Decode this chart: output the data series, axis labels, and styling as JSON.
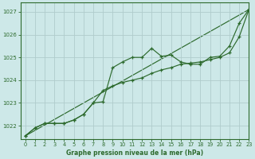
{
  "title": "Graphe pression niveau de la mer (hPa)",
  "background_color": "#cde8e8",
  "grid_color": "#b0cccc",
  "line_color": "#2d6a2d",
  "xlim": [
    -0.5,
    23
  ],
  "ylim": [
    1021.4,
    1027.4
  ],
  "yticks": [
    1022,
    1023,
    1024,
    1025,
    1026,
    1027
  ],
  "xticks": [
    0,
    1,
    2,
    3,
    4,
    5,
    6,
    7,
    8,
    9,
    10,
    11,
    12,
    13,
    14,
    15,
    16,
    17,
    18,
    19,
    20,
    21,
    22,
    23
  ],
  "series1_x": [
    0,
    1,
    2,
    3,
    4,
    5,
    6,
    7,
    8,
    9,
    10,
    11,
    12,
    13,
    14,
    15,
    16,
    17,
    18,
    19,
    20,
    21,
    22,
    23
  ],
  "series1_y": [
    1021.55,
    1021.9,
    1022.1,
    1022.1,
    1022.1,
    1022.25,
    1022.5,
    1023.0,
    1023.05,
    1024.55,
    1024.8,
    1025.0,
    1025.0,
    1025.4,
    1025.05,
    1025.1,
    1024.8,
    1024.7,
    1024.7,
    1025.0,
    1025.05,
    1025.5,
    1026.5,
    1027.1
  ],
  "series2_x": [
    0,
    1,
    2,
    3,
    4,
    5,
    6,
    7,
    8,
    9,
    10,
    11,
    12,
    13,
    14,
    15,
    16,
    17,
    18,
    19,
    20,
    21,
    22,
    23
  ],
  "series2_y": [
    1021.55,
    1021.9,
    1022.1,
    1022.1,
    1022.1,
    1022.25,
    1022.5,
    1023.0,
    1023.55,
    1023.75,
    1023.9,
    1024.0,
    1024.1,
    1024.3,
    1024.45,
    1024.55,
    1024.7,
    1024.75,
    1024.8,
    1024.9,
    1025.0,
    1025.2,
    1025.9,
    1027.1
  ],
  "series3_x": [
    0,
    23
  ],
  "series3_y": [
    1021.55,
    1027.1
  ]
}
